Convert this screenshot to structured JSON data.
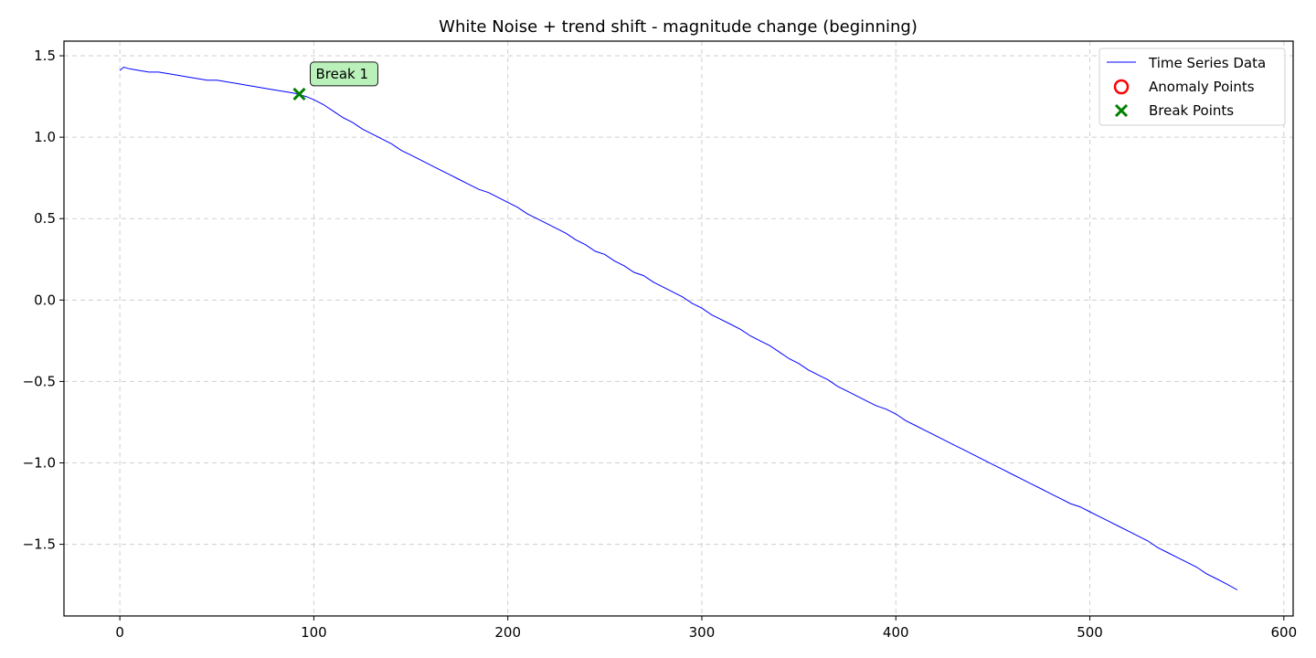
{
  "chart_data": {
    "type": "line",
    "title": "White Noise + trend shift - magnitude change (beginning)",
    "xlabel": "",
    "ylabel": "",
    "xlim": [
      -28.8,
      604.8
    ],
    "ylim": [
      -1.94,
      1.59
    ],
    "x_ticks": [
      0,
      100,
      200,
      300,
      400,
      500,
      600
    ],
    "x_tick_labels": [
      "0",
      "100",
      "200",
      "300",
      "400",
      "500",
      "600"
    ],
    "y_ticks": [
      1.5,
      1.0,
      0.5,
      0.0,
      -0.5,
      -1.0,
      -1.5
    ],
    "y_tick_labels": [
      "1.5",
      "1.0",
      "0.5",
      "0.0",
      "−0.5",
      "−1.0",
      "−1.5"
    ],
    "grid": true,
    "legend_position": "top-right",
    "series": [
      {
        "name": "Time Series Data",
        "kind": "line",
        "color": "#0000ff",
        "x": [
          0,
          2,
          5,
          10,
          15,
          20,
          25,
          30,
          35,
          40,
          45,
          50,
          55,
          60,
          65,
          70,
          75,
          80,
          85,
          90,
          93,
          96,
          100,
          105,
          110,
          115,
          120,
          125,
          130,
          135,
          140,
          145,
          150,
          155,
          160,
          165,
          170,
          175,
          180,
          185,
          190,
          195,
          200,
          205,
          210,
          215,
          220,
          225,
          230,
          235,
          240,
          245,
          250,
          255,
          260,
          265,
          270,
          275,
          280,
          285,
          290,
          295,
          300,
          305,
          310,
          315,
          320,
          325,
          330,
          335,
          340,
          345,
          350,
          355,
          360,
          365,
          370,
          375,
          380,
          385,
          390,
          395,
          400,
          405,
          410,
          415,
          420,
          425,
          430,
          435,
          440,
          445,
          450,
          455,
          460,
          465,
          470,
          475,
          480,
          485,
          490,
          495,
          500,
          505,
          510,
          515,
          520,
          525,
          530,
          535,
          540,
          545,
          550,
          555,
          560,
          565,
          570,
          576
        ],
        "y": [
          1.41,
          1.43,
          1.42,
          1.41,
          1.4,
          1.4,
          1.39,
          1.38,
          1.37,
          1.36,
          1.35,
          1.35,
          1.34,
          1.33,
          1.32,
          1.31,
          1.3,
          1.29,
          1.28,
          1.27,
          1.26,
          1.25,
          1.23,
          1.2,
          1.16,
          1.12,
          1.09,
          1.05,
          1.02,
          0.99,
          0.96,
          0.92,
          0.89,
          0.86,
          0.83,
          0.8,
          0.77,
          0.74,
          0.71,
          0.68,
          0.66,
          0.63,
          0.6,
          0.57,
          0.53,
          0.5,
          0.47,
          0.44,
          0.41,
          0.37,
          0.34,
          0.3,
          0.28,
          0.24,
          0.21,
          0.17,
          0.15,
          0.11,
          0.08,
          0.05,
          0.02,
          -0.02,
          -0.05,
          -0.09,
          -0.12,
          -0.15,
          -0.18,
          -0.22,
          -0.25,
          -0.28,
          -0.32,
          -0.36,
          -0.39,
          -0.43,
          -0.46,
          -0.49,
          -0.53,
          -0.56,
          -0.59,
          -0.62,
          -0.65,
          -0.67,
          -0.7,
          -0.74,
          -0.77,
          -0.8,
          -0.83,
          -0.86,
          -0.89,
          -0.92,
          -0.95,
          -0.98,
          -1.01,
          -1.04,
          -1.07,
          -1.1,
          -1.13,
          -1.16,
          -1.19,
          -1.22,
          -1.25,
          -1.27,
          -1.3,
          -1.33,
          -1.36,
          -1.39,
          -1.42,
          -1.45,
          -1.48,
          -1.52,
          -1.55,
          -1.58,
          -1.61,
          -1.64,
          -1.68,
          -1.71,
          -1.74,
          -1.78
        ]
      },
      {
        "name": "Anomaly Points",
        "kind": "scatter",
        "marker": "circle",
        "color": "#ff0000",
        "x": [],
        "y": []
      },
      {
        "name": "Break Points",
        "kind": "scatter",
        "marker": "x",
        "color": "#008000",
        "x": [
          92.5
        ],
        "y": [
          1.265
        ]
      }
    ],
    "annotations": [
      {
        "text": "Break 1",
        "x": 92.5,
        "y": 1.265,
        "background": "#b3f0b3"
      }
    ]
  }
}
